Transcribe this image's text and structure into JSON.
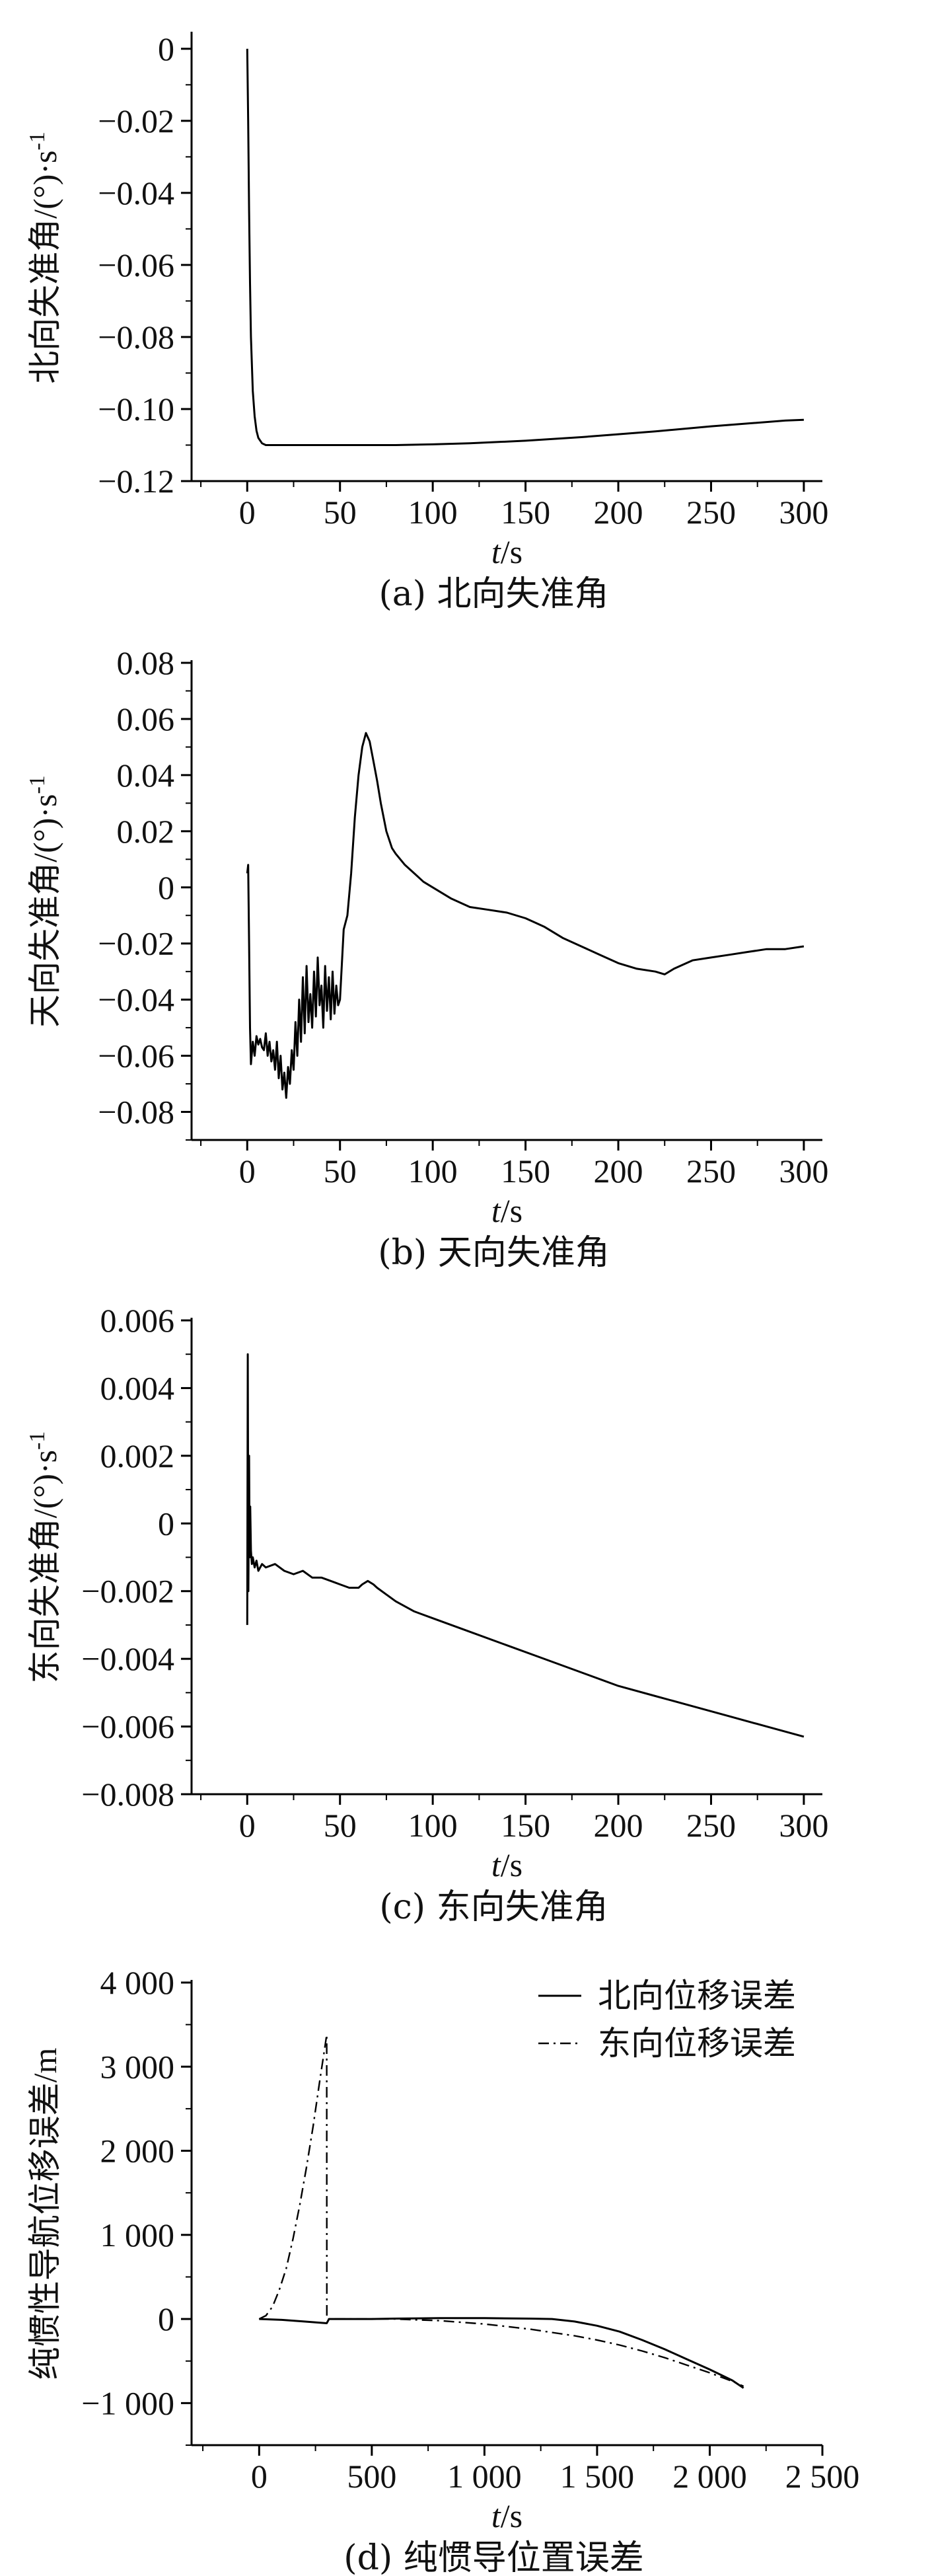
{
  "chart_data": [
    {
      "type": "line",
      "ylabel": "北向失准角/(°)·s",
      "ylabel_sup": "-1",
      "xlabel_italic": "t",
      "xlabel_rest": "/s",
      "caption": "(a) 北向失准角",
      "xlim": [
        -30,
        310
      ],
      "ylim": [
        -0.12,
        0.004
      ],
      "xticks": [
        {
          "v": 0,
          "t": "0"
        },
        {
          "v": 50,
          "t": "50"
        },
        {
          "v": 100,
          "t": "100"
        },
        {
          "v": 150,
          "t": "150"
        },
        {
          "v": 200,
          "t": "200"
        },
        {
          "v": 250,
          "t": "250"
        },
        {
          "v": 300,
          "t": "300"
        }
      ],
      "yticks": [
        {
          "v": 0,
          "t": "0"
        },
        {
          "v": -0.02,
          "t": "−0.02"
        },
        {
          "v": -0.04,
          "t": "−0.04"
        },
        {
          "v": -0.06,
          "t": "−0.06"
        },
        {
          "v": -0.08,
          "t": "−0.08"
        },
        {
          "v": -0.1,
          "t": "−0.10"
        },
        {
          "v": -0.12,
          "t": "−0.12"
        }
      ],
      "series": [
        {
          "style": "solid",
          "x": [
            0,
            0.5,
            1,
            1.5,
            2,
            3,
            4,
            5,
            6,
            8,
            10,
            15,
            20,
            30,
            50,
            80,
            100,
            120,
            150,
            180,
            200,
            220,
            250,
            270,
            290,
            300
          ],
          "y": [
            0,
            -0.02,
            -0.045,
            -0.065,
            -0.08,
            -0.095,
            -0.102,
            -0.106,
            -0.108,
            -0.1095,
            -0.11,
            -0.11,
            -0.11,
            -0.11,
            -0.11,
            -0.11,
            -0.1098,
            -0.1095,
            -0.1088,
            -0.1078,
            -0.107,
            -0.1062,
            -0.1048,
            -0.104,
            -0.1032,
            -0.103
          ]
        }
      ]
    },
    {
      "type": "line",
      "ylabel": "天向失准角/(°)·s",
      "ylabel_sup": "-1",
      "xlabel_italic": "t",
      "xlabel_rest": "/s",
      "caption": "(b) 天向失准角",
      "xlim": [
        -30,
        310
      ],
      "ylim": [
        -0.09,
        0.08
      ],
      "xticks": [
        {
          "v": 0,
          "t": "0"
        },
        {
          "v": 50,
          "t": "50"
        },
        {
          "v": 100,
          "t": "100"
        },
        {
          "v": 150,
          "t": "150"
        },
        {
          "v": 200,
          "t": "200"
        },
        {
          "v": 250,
          "t": "250"
        },
        {
          "v": 300,
          "t": "300"
        }
      ],
      "yticks": [
        {
          "v": 0.08,
          "t": "0.08"
        },
        {
          "v": 0.06,
          "t": "0.06"
        },
        {
          "v": 0.04,
          "t": "0.04"
        },
        {
          "v": 0.02,
          "t": "0.02"
        },
        {
          "v": 0,
          "t": "0"
        },
        {
          "v": -0.02,
          "t": "−0.02"
        },
        {
          "v": -0.04,
          "t": "−0.04"
        },
        {
          "v": -0.06,
          "t": "−0.06"
        },
        {
          "v": -0.08,
          "t": "−0.08"
        }
      ],
      "series": [
        {
          "style": "solid",
          "x": [
            0,
            0.5,
            1,
            1.5,
            2,
            3,
            4,
            5,
            6,
            7,
            8,
            9,
            10,
            11,
            12,
            13,
            14,
            15,
            16,
            17,
            18,
            19,
            20,
            21,
            22,
            23,
            24,
            25,
            26,
            27,
            28,
            29,
            30,
            31,
            32,
            33,
            34,
            35,
            36,
            37,
            38,
            39,
            40,
            41,
            42,
            43,
            44,
            45,
            46,
            47,
            48,
            49,
            50,
            52,
            54,
            56,
            58,
            60,
            62,
            64,
            66,
            68,
            70,
            72,
            75,
            78,
            80,
            85,
            90,
            95,
            100,
            110,
            120,
            130,
            140,
            150,
            160,
            170,
            180,
            190,
            200,
            210,
            220,
            225,
            230,
            240,
            250,
            260,
            270,
            280,
            290,
            300
          ],
          "y": [
            0.005,
            0.008,
            -0.02,
            -0.05,
            -0.063,
            -0.055,
            -0.06,
            -0.053,
            -0.056,
            -0.054,
            -0.057,
            -0.058,
            -0.052,
            -0.06,
            -0.055,
            -0.062,
            -0.058,
            -0.065,
            -0.055,
            -0.068,
            -0.06,
            -0.072,
            -0.066,
            -0.075,
            -0.064,
            -0.07,
            -0.058,
            -0.065,
            -0.048,
            -0.06,
            -0.04,
            -0.055,
            -0.032,
            -0.052,
            -0.028,
            -0.048,
            -0.038,
            -0.05,
            -0.03,
            -0.046,
            -0.025,
            -0.042,
            -0.035,
            -0.05,
            -0.028,
            -0.044,
            -0.032,
            -0.047,
            -0.03,
            -0.045,
            -0.035,
            -0.042,
            -0.04,
            -0.015,
            -0.01,
            0.005,
            0.025,
            0.04,
            0.05,
            0.055,
            0.052,
            0.045,
            0.038,
            0.03,
            0.02,
            0.014,
            0.012,
            0.008,
            0.005,
            0.002,
            0,
            -0.004,
            -0.007,
            -0.008,
            -0.009,
            -0.011,
            -0.014,
            -0.018,
            -0.021,
            -0.024,
            -0.027,
            -0.029,
            -0.03,
            -0.031,
            -0.029,
            -0.026,
            -0.025,
            -0.024,
            -0.023,
            -0.022,
            -0.022,
            -0.021
          ]
        }
      ]
    },
    {
      "type": "line",
      "ylabel": "东向失准角/(°)·s",
      "ylabel_sup": "-1",
      "xlabel_italic": "t",
      "xlabel_rest": "/s",
      "caption": "(c) 东向失准角",
      "xlim": [
        -30,
        310
      ],
      "ylim": [
        -0.008,
        0.006
      ],
      "xticks": [
        {
          "v": 0,
          "t": "0"
        },
        {
          "v": 50,
          "t": "50"
        },
        {
          "v": 100,
          "t": "100"
        },
        {
          "v": 150,
          "t": "150"
        },
        {
          "v": 200,
          "t": "200"
        },
        {
          "v": 250,
          "t": "250"
        },
        {
          "v": 300,
          "t": "300"
        }
      ],
      "yticks": [
        {
          "v": 0.006,
          "t": "0.006"
        },
        {
          "v": 0.004,
          "t": "0.004"
        },
        {
          "v": 0.002,
          "t": "0.002"
        },
        {
          "v": 0,
          "t": "0"
        },
        {
          "v": -0.002,
          "t": "−0.002"
        },
        {
          "v": -0.004,
          "t": "−0.004"
        },
        {
          "v": -0.006,
          "t": "−0.006"
        },
        {
          "v": -0.008,
          "t": "−0.008"
        }
      ],
      "series": [
        {
          "style": "solid",
          "x": [
            0,
            0.3,
            0.6,
            1,
            1.3,
            1.6,
            2,
            2.5,
            3,
            4,
            5,
            6,
            8,
            10,
            15,
            20,
            25,
            30,
            35,
            40,
            45,
            50,
            55,
            60,
            62,
            65,
            68,
            70,
            75,
            80,
            90,
            100,
            120,
            140,
            160,
            180,
            200,
            220,
            240,
            260,
            280,
            300
          ],
          "y": [
            -0.003,
            0.005,
            -0.002,
            0.002,
            -0.001,
            0.0005,
            -0.0008,
            -0.0012,
            -0.001,
            -0.0013,
            -0.0011,
            -0.0014,
            -0.0012,
            -0.0013,
            -0.0012,
            -0.0014,
            -0.0015,
            -0.0014,
            -0.0016,
            -0.0016,
            -0.0017,
            -0.0018,
            -0.0019,
            -0.0019,
            -0.0018,
            -0.0017,
            -0.0018,
            -0.0019,
            -0.0021,
            -0.0023,
            -0.0026,
            -0.0028,
            -0.0032,
            -0.0036,
            -0.004,
            -0.0044,
            -0.0048,
            -0.0051,
            -0.0054,
            -0.0057,
            -0.006,
            -0.0063
          ]
        }
      ]
    },
    {
      "type": "line",
      "ylabel": "纯惯性导航位移误差/m",
      "xlabel_italic": "t",
      "xlabel_rest": "/s",
      "caption": "(d) 纯惯导位置误差",
      "xlim": [
        -300,
        2500
      ],
      "ylim": [
        -1500,
        4000
      ],
      "xticks": [
        {
          "v": 0,
          "t": "0"
        },
        {
          "v": 500,
          "t": "500"
        },
        {
          "v": 1000,
          "t": "1 000"
        },
        {
          "v": 1500,
          "t": "1 500"
        },
        {
          "v": 2000,
          "t": "2 000"
        },
        {
          "v": 2500,
          "t": "2 500"
        }
      ],
      "yticks": [
        {
          "v": 4000,
          "t": "4 000"
        },
        {
          "v": 3000,
          "t": "3 000"
        },
        {
          "v": 2000,
          "t": "2 000"
        },
        {
          "v": 1000,
          "t": "1 000"
        },
        {
          "v": 0,
          "t": "0"
        },
        {
          "v": -1000,
          "t": "−1 000"
        }
      ],
      "legend_position": "top-right",
      "series": [
        {
          "name": "北向位移误差",
          "style": "solid",
          "x": [
            0,
            100,
            200,
            300,
            310,
            400,
            500,
            600,
            800,
            1000,
            1200,
            1300,
            1400,
            1500,
            1600,
            1700,
            1800,
            1900,
            2000,
            2100,
            2150
          ],
          "y": [
            0,
            -10,
            -30,
            -50,
            0,
            0,
            0,
            5,
            10,
            10,
            5,
            0,
            -30,
            -80,
            -150,
            -250,
            -360,
            -480,
            -600,
            -730,
            -820
          ]
        },
        {
          "name": "东向位移误差",
          "style": "dashdot",
          "x": [
            0,
            30,
            60,
            90,
            120,
            150,
            180,
            210,
            240,
            270,
            290,
            300,
            300.5,
            330,
            400,
            500,
            600,
            700,
            800,
            900,
            1000,
            1100,
            1200,
            1300,
            1400,
            1500,
            1600,
            1700,
            1800,
            1900,
            2000,
            2100,
            2150
          ],
          "y": [
            0,
            40,
            150,
            350,
            600,
            950,
            1350,
            1800,
            2300,
            2850,
            3200,
            3380,
            0,
            0,
            0,
            0,
            0,
            -10,
            -20,
            -40,
            -60,
            -90,
            -120,
            -160,
            -200,
            -250,
            -310,
            -380,
            -460,
            -550,
            -640,
            -740,
            -800
          ]
        }
      ]
    }
  ]
}
